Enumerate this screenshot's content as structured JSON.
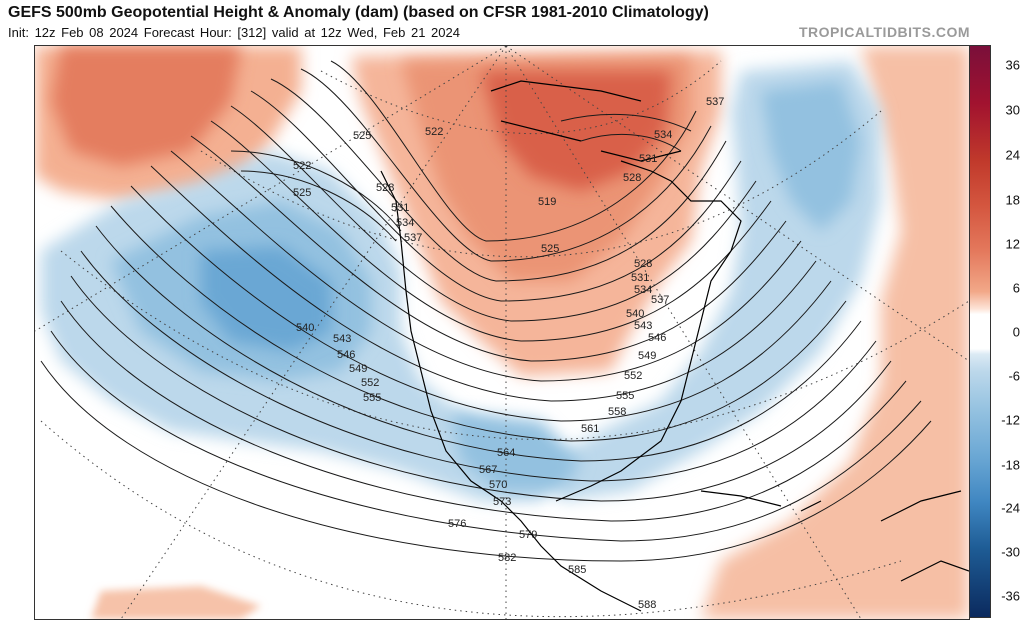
{
  "header": {
    "title": "GEFS 500mb Geopotential Height & Anomaly (dam) (based on CFSR 1981-2010 Climatology)",
    "subtitle": "Init: 12z Feb 08 2024   Forecast Hour: [312]   valid at 12z Wed, Feb 21 2024",
    "watermark": "TROPICALTIDBITS.COM"
  },
  "colorbar": {
    "labels": [
      "36",
      "30",
      "24",
      "18",
      "12",
      "6",
      "0",
      "-6",
      "-12",
      "-18",
      "-24",
      "-30",
      "-36"
    ],
    "colors": [
      "#7a0f3a",
      "#a1122f",
      "#c0392b",
      "#d4563f",
      "#e4795d",
      "#f2a888",
      "#ffffff",
      "#bcd8eb",
      "#93c1e0",
      "#6aa7d4",
      "#3f86c1",
      "#1e5c95",
      "#0b2a5e"
    ]
  },
  "contour_labels": [
    "525",
    "522",
    "522",
    "525",
    "528",
    "531",
    "534",
    "537",
    "540",
    "543",
    "546",
    "549",
    "552",
    "555",
    "564",
    "567",
    "570",
    "573",
    "576",
    "579",
    "582",
    "585",
    "588",
    "519",
    "525",
    "528",
    "531",
    "534",
    "537",
    "540",
    "543",
    "546",
    "549",
    "552",
    "555",
    "558",
    "561",
    "537",
    "534",
    "531",
    "528"
  ]
}
